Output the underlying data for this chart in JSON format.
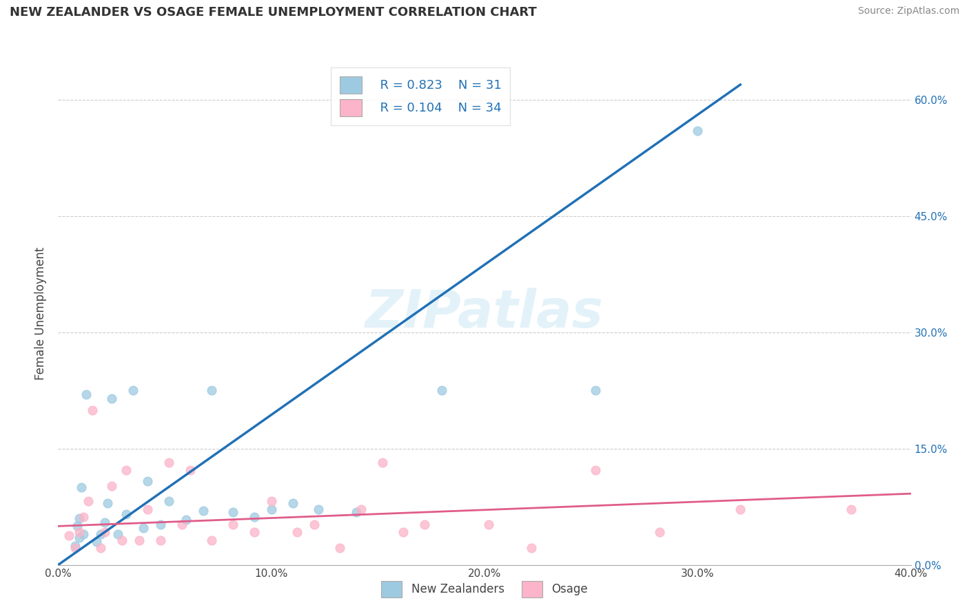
{
  "title": "NEW ZEALANDER VS OSAGE FEMALE UNEMPLOYMENT CORRELATION CHART",
  "source": "Source: ZipAtlas.com",
  "ylabel": "Female Unemployment",
  "xlim": [
    0.0,
    0.4
  ],
  "ylim": [
    0.0,
    0.65
  ],
  "xtick_labels": [
    "0.0%",
    "10.0%",
    "20.0%",
    "30.0%",
    "40.0%"
  ],
  "xtick_values": [
    0.0,
    0.1,
    0.2,
    0.3,
    0.4
  ],
  "ytick_labels_right": [
    "0.0%",
    "15.0%",
    "30.0%",
    "45.0%",
    "60.0%"
  ],
  "ytick_values_right": [
    0.0,
    0.15,
    0.3,
    0.45,
    0.6
  ],
  "grid_color": "#cccccc",
  "background_color": "#ffffff",
  "watermark_text": "ZIPatlas",
  "legend_R1": "R = 0.823",
  "legend_N1": "N = 31",
  "legend_R2": "R = 0.104",
  "legend_N2": "N = 34",
  "legend_label1": "New Zealanders",
  "legend_label2": "Osage",
  "color1": "#9ecae1",
  "color2": "#fbb4c9",
  "line_color1": "#2171b5",
  "line_color2": "#e05c8a",
  "text_color": "#333333",
  "blue_text": "#2171b5",
  "nz_x": [
    0.008,
    0.009,
    0.01,
    0.01,
    0.011,
    0.012,
    0.013,
    0.018,
    0.02,
    0.022,
    0.023,
    0.025,
    0.028,
    0.032,
    0.035,
    0.04,
    0.042,
    0.048,
    0.052,
    0.06,
    0.068,
    0.072,
    0.082,
    0.092,
    0.1,
    0.11,
    0.122,
    0.14,
    0.18,
    0.252,
    0.3
  ],
  "nz_y": [
    0.025,
    0.05,
    0.035,
    0.06,
    0.1,
    0.04,
    0.22,
    0.03,
    0.04,
    0.055,
    0.08,
    0.215,
    0.04,
    0.065,
    0.225,
    0.048,
    0.108,
    0.052,
    0.082,
    0.058,
    0.07,
    0.225,
    0.068,
    0.062,
    0.072,
    0.08,
    0.072,
    0.068,
    0.225,
    0.225,
    0.56
  ],
  "osage_x": [
    0.005,
    0.008,
    0.01,
    0.012,
    0.014,
    0.016,
    0.02,
    0.022,
    0.025,
    0.03,
    0.032,
    0.038,
    0.042,
    0.048,
    0.052,
    0.058,
    0.062,
    0.072,
    0.082,
    0.092,
    0.1,
    0.112,
    0.12,
    0.132,
    0.142,
    0.152,
    0.162,
    0.172,
    0.202,
    0.222,
    0.252,
    0.282,
    0.32,
    0.372
  ],
  "osage_y": [
    0.038,
    0.022,
    0.042,
    0.062,
    0.082,
    0.2,
    0.022,
    0.042,
    0.102,
    0.032,
    0.122,
    0.032,
    0.072,
    0.032,
    0.132,
    0.052,
    0.122,
    0.032,
    0.052,
    0.042,
    0.082,
    0.042,
    0.052,
    0.022,
    0.072,
    0.132,
    0.042,
    0.052,
    0.052,
    0.022,
    0.122,
    0.042,
    0.072,
    0.072
  ],
  "nz_trend_x": [
    0.0,
    0.32
  ],
  "nz_trend_y": [
    0.0,
    0.62
  ],
  "osage_trend_x": [
    0.0,
    0.4
  ],
  "osage_trend_y": [
    0.05,
    0.092
  ]
}
